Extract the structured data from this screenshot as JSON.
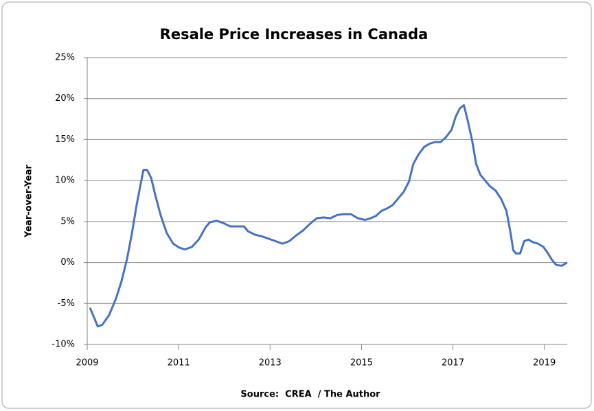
{
  "chart_data": {
    "type": "line",
    "title": "Resale Price Increases in Canada",
    "y_label": "Year-over-Year",
    "source": "Source:  CREA  / The Author",
    "color": "#4472c4",
    "grid": true,
    "xlim": [
      2009,
      2019.5
    ],
    "xticks": [
      2009,
      2011,
      2013,
      2015,
      2017,
      2019
    ],
    "ylim": [
      -10,
      25
    ],
    "yticks": [
      {
        "value": -10,
        "label": "-10%"
      },
      {
        "value": -5,
        "label": "-5%"
      },
      {
        "value": 0,
        "label": "0%"
      },
      {
        "value": 5,
        "label": "5%"
      },
      {
        "value": 10,
        "label": "10%"
      },
      {
        "value": 15,
        "label": "15%"
      },
      {
        "value": 20,
        "label": "20%"
      },
      {
        "value": 25,
        "label": "25%"
      }
    ],
    "x": [
      2009.06,
      2009.23,
      2009.33,
      2009.48,
      2009.63,
      2009.75,
      2009.87,
      2009.98,
      2010.08,
      2010.16,
      2010.23,
      2010.31,
      2010.4,
      2010.49,
      2010.61,
      2010.74,
      2010.88,
      2011.02,
      2011.14,
      2011.29,
      2011.44,
      2011.59,
      2011.68,
      2011.83,
      2011.98,
      2012.13,
      2012.28,
      2012.43,
      2012.52,
      2012.67,
      2012.82,
      2012.97,
      2013.12,
      2013.27,
      2013.42,
      2013.57,
      2013.72,
      2013.87,
      2014.02,
      2014.17,
      2014.32,
      2014.47,
      2014.62,
      2014.77,
      2014.92,
      2015.08,
      2015.2,
      2015.32,
      2015.44,
      2015.56,
      2015.68,
      2015.8,
      2015.92,
      2016.04,
      2016.13,
      2016.25,
      2016.37,
      2016.49,
      2016.61,
      2016.73,
      2016.85,
      2016.97,
      2017.06,
      2017.15,
      2017.24,
      2017.33,
      2017.42,
      2017.51,
      2017.6,
      2017.72,
      2017.81,
      2017.93,
      2018.05,
      2018.17,
      2018.26,
      2018.32,
      2018.38,
      2018.47,
      2018.56,
      2018.65,
      2018.74,
      2018.86,
      2018.98,
      2019.08,
      2019.17,
      2019.26,
      2019.38,
      2019.5
    ],
    "values": [
      -5.5,
      -7.8,
      -7.6,
      -6.4,
      -4.4,
      -2.3,
      0.4,
      3.6,
      7,
      9.3,
      11.3,
      11.3,
      10.3,
      8.2,
      5.7,
      3.6,
      2.3,
      1.8,
      1.6,
      1.9,
      2.8,
      4.3,
      4.9,
      5.1,
      4.8,
      4.4,
      4.4,
      4.4,
      3.8,
      3.4,
      3.2,
      2.9,
      2.6,
      2.3,
      2.6,
      3.3,
      3.9,
      4.7,
      5.4,
      5.5,
      5.4,
      5.8,
      5.9,
      5.9,
      5.4,
      5.2,
      5.4,
      5.7,
      6.3,
      6.6,
      7,
      7.8,
      8.6,
      9.9,
      12,
      13.2,
      14.1,
      14.5,
      14.7,
      14.7,
      15.3,
      16.2,
      17.8,
      18.8,
      19.2,
      17.2,
      14.9,
      12,
      10.7,
      9.9,
      9.3,
      8.8,
      7.8,
      6.3,
      3.6,
      1.5,
      1.1,
      1.1,
      2.6,
      2.8,
      2.5,
      2.3,
      1.9,
      1.1,
      0.3,
      -0.3,
      -0.4,
      0
    ]
  }
}
